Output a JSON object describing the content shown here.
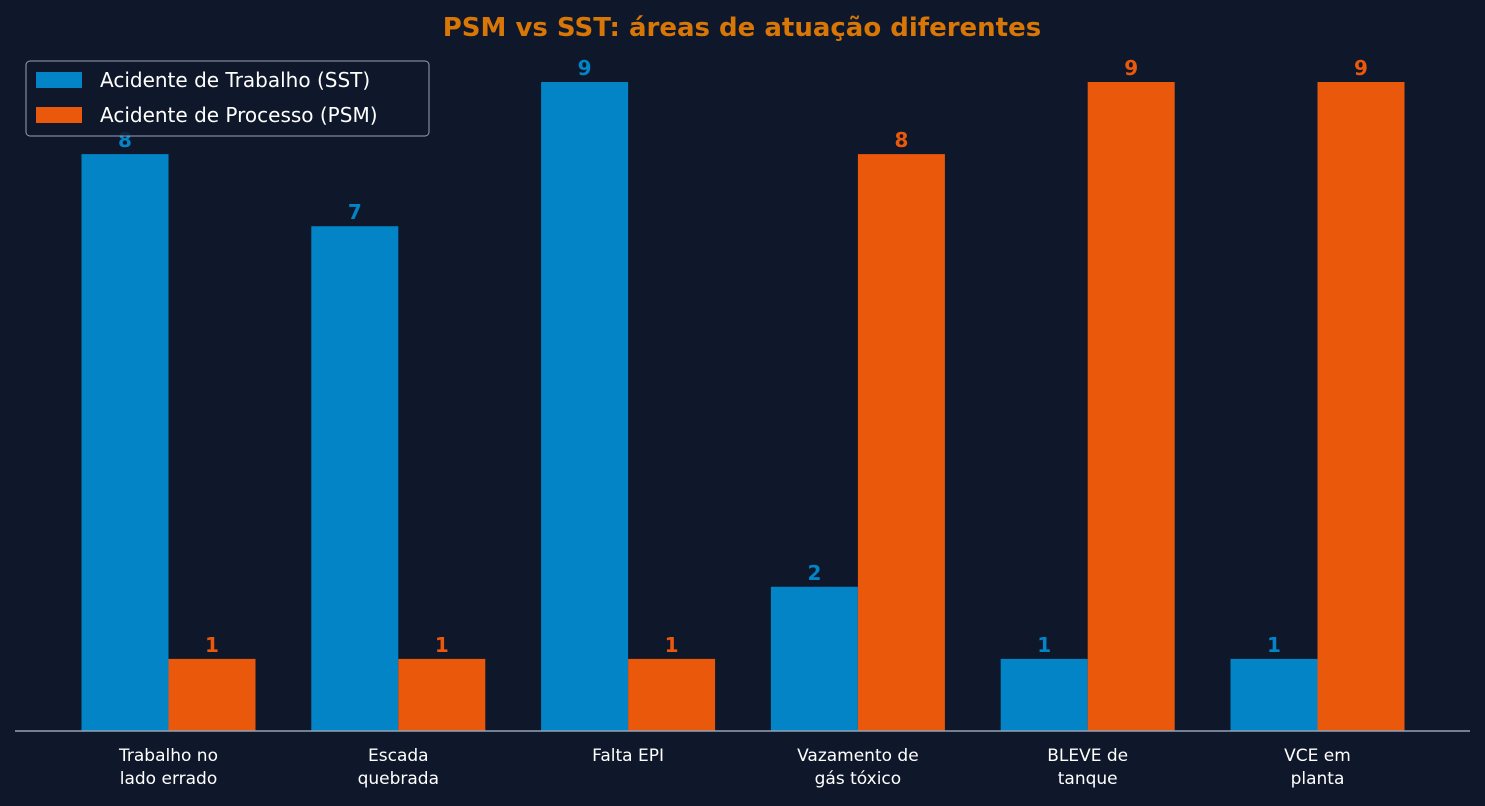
{
  "chart_data": {
    "type": "bar",
    "title": "PSM vs SST: áreas de atuação diferentes",
    "categories": [
      [
        "Trabalho no",
        "lado errado"
      ],
      [
        "Escada",
        "quebrada"
      ],
      [
        "Falta EPI"
      ],
      [
        "Vazamento de",
        "gás tóxico"
      ],
      [
        "BLEVE de",
        "tanque"
      ],
      [
        "VCE em",
        "planta"
      ]
    ],
    "series": [
      {
        "name": "Acidente de Trabalho (SST)",
        "color": "#0284c7",
        "values": [
          8,
          7,
          9,
          2,
          1,
          1
        ]
      },
      {
        "name": "Acidente de Processo (PSM)",
        "color": "#ea580c",
        "values": [
          1,
          1,
          1,
          8,
          9,
          9
        ]
      }
    ],
    "ylim": [
      0,
      9
    ],
    "xlabel": "",
    "ylabel": "",
    "legend": "top-left",
    "grid": false,
    "colors": {
      "background": "#0f172a",
      "title": "#d97706",
      "axis": "#94a3b8",
      "tick_text": "#ffffff",
      "legend_border": "#94a3b8"
    }
  }
}
